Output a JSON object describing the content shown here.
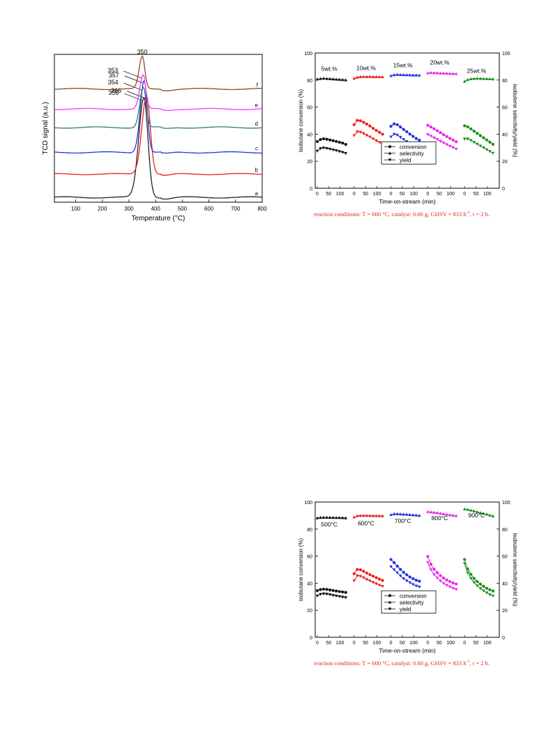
{
  "chart_data": [
    {
      "type": "line",
      "xlabel": "Temperature (°C)",
      "ylabel": "TCD signal (a.u.)",
      "xlim": [
        20,
        800
      ],
      "xticks": [
        100,
        200,
        300,
        400,
        500,
        600,
        700,
        800
      ],
      "y_tick_labels": false,
      "grid": false,
      "series": [
        {
          "name": "a",
          "color": "#222222",
          "baseline": 0.3,
          "peak_x": 356,
          "peak_height": 6.2,
          "width": 26,
          "peak_label": "356"
        },
        {
          "name": "b",
          "color": "#ee1c1c",
          "baseline": 1.75,
          "peak_x": 366,
          "peak_height": 4.9,
          "width": 24,
          "peak_label": "366"
        },
        {
          "name": "c",
          "color": "#2233dd",
          "baseline": 3.1,
          "peak_x": 357,
          "peak_height": 4.5,
          "width": 20,
          "peak_label": "357"
        },
        {
          "name": "d",
          "color": "#2a7f74",
          "baseline": 4.65,
          "peak_x": 354,
          "peak_height": 2.5,
          "width": 18,
          "peak_label": "354"
        },
        {
          "name": "e",
          "color": "#ff33ff",
          "baseline": 5.8,
          "peak_x": 353,
          "peak_height": 2.1,
          "width": 17,
          "peak_label": "353"
        },
        {
          "name": "f",
          "color": "#8b4a2a",
          "baseline": 7.05,
          "peak_x": 350,
          "peak_height": 2.0,
          "width": 16,
          "peak_label": "350"
        }
      ]
    },
    {
      "type": "scatter",
      "xlabel": "Time-on-stream (min)",
      "ylabel": "isobutane conversion (%)",
      "y2label": "isobutene selectivity/yield (%)",
      "ylim": [
        0,
        100
      ],
      "yticks": [
        0,
        20,
        40,
        60,
        80,
        100
      ],
      "segment_xticks": [
        "0",
        "50",
        "100"
      ],
      "legend": [
        "conversion",
        "selectivity",
        "yield"
      ],
      "legend_placement": "lower-center",
      "groups": [
        {
          "label": "5wt.%",
          "color": "#111111",
          "conversion": [
            34.5,
            36.0,
            36.6,
            36.2,
            35.7,
            35.2,
            34.6,
            34.0,
            33.4,
            32.4
          ],
          "selectivity": [
            80.6,
            81.0,
            81.2,
            81.0,
            80.9,
            80.7,
            80.5,
            80.4,
            80.2,
            80.0
          ],
          "yield": [
            27.5,
            29.4,
            29.9,
            29.5,
            29.0,
            28.4,
            27.9,
            27.2,
            26.6,
            25.8
          ]
        },
        {
          "label": "10wt.%",
          "color": "#ee1c1c",
          "conversion": [
            47.0,
            50.2,
            49.9,
            48.8,
            47.5,
            46.0,
            44.3,
            42.8,
            41.4,
            40.0
          ],
          "selectivity": [
            81.2,
            82.0,
            82.4,
            82.5,
            82.5,
            82.5,
            82.4,
            82.4,
            82.3,
            82.3
          ],
          "yield": [
            39.0,
            41.8,
            41.5,
            40.5,
            39.2,
            38.0,
            36.6,
            35.2,
            34.0,
            32.8
          ]
        },
        {
          "label": "15wt.%",
          "color": "#2233dd",
          "conversion": [
            45.8,
            47.6,
            47.0,
            45.3,
            43.5,
            41.8,
            40.0,
            38.4,
            36.8,
            35.5
          ],
          "selectivity": [
            83.2,
            83.8,
            84.0,
            83.9,
            83.8,
            83.8,
            83.7,
            83.6,
            83.6,
            83.5
          ],
          "yield": [
            38.0,
            40.0,
            39.4,
            37.8,
            36.2,
            34.6,
            33.0,
            31.7,
            30.4,
            29.3
          ]
        },
        {
          "label": "20wt.%",
          "color": "#ee22ee",
          "conversion": [
            46.6,
            45.3,
            44.0,
            42.6,
            41.1,
            39.6,
            38.2,
            36.9,
            35.6,
            34.4
          ],
          "selectivity": [
            85.2,
            85.4,
            85.3,
            85.2,
            85.0,
            85.0,
            84.9,
            84.8,
            84.7,
            84.6
          ],
          "yield": [
            39.8,
            38.6,
            37.3,
            36.1,
            34.8,
            33.6,
            32.3,
            31.2,
            30.1,
            29.0
          ]
        },
        {
          "label": "25wt.%",
          "color": "#1a8f1a",
          "conversion": [
            46.2,
            45.4,
            43.9,
            42.2,
            40.6,
            38.9,
            37.3,
            35.7,
            34.1,
            32.5
          ],
          "selectivity": [
            79.0,
            80.2,
            80.8,
            81.0,
            81.2,
            81.1,
            81.0,
            80.9,
            80.8,
            80.7
          ],
          "yield": [
            36.5,
            36.6,
            35.4,
            34.0,
            32.7,
            31.3,
            30.0,
            28.6,
            27.3,
            26.0
          ]
        }
      ],
      "caption": {
        "lead": "reaction conditions: T = 600 °C, catalyst: 0.60 g, GHSV = 833 h",
        "sup": "-1",
        "tail": ", t = 2 h."
      }
    },
    {
      "type": "scatter",
      "xlabel": "Time-on-stream (min)",
      "ylabel": "isobutane conversion (%)",
      "y2label": "isobutene selectivity/yield (%)",
      "ylim": [
        0,
        100
      ],
      "yticks": [
        0,
        20,
        40,
        60,
        80,
        100
      ],
      "segment_xticks": [
        "0",
        "50",
        "100"
      ],
      "legend": [
        "conversion",
        "selectivity",
        "yield"
      ],
      "legend_placement": "lower-center",
      "groups": [
        {
          "label": "500°C",
          "color": "#111111",
          "conversion": [
            34.5,
            35.3,
            35.6,
            35.4,
            35.0,
            34.6,
            34.2,
            33.8,
            33.5,
            33.2
          ],
          "selectivity": [
            88.2,
            88.5,
            88.6,
            88.6,
            88.5,
            88.5,
            88.4,
            88.4,
            88.3,
            88.2
          ],
          "yield": [
            30.6,
            31.8,
            32.2,
            32.0,
            31.6,
            31.0,
            30.6,
            30.2,
            29.8,
            29.4
          ]
        },
        {
          "label": "600°C",
          "color": "#ee1c1c",
          "conversion": [
            47.0,
            50.2,
            49.9,
            48.8,
            47.5,
            46.3,
            45.2,
            44.1,
            43.0,
            42.0
          ],
          "selectivity": [
            88.8,
            89.8,
            90.0,
            90.0,
            90.0,
            89.9,
            89.9,
            89.8,
            89.8,
            89.7
          ],
          "yield": [
            41.8,
            45.5,
            45.2,
            44.1,
            42.8,
            41.7,
            40.6,
            39.6,
            38.6,
            37.7
          ]
        },
        {
          "label": "700°C",
          "color": "#2233dd",
          "conversion": [
            57.5,
            55.2,
            52.6,
            50.2,
            48.0,
            46.2,
            44.6,
            43.3,
            42.2,
            41.5
          ],
          "selectivity": [
            90.6,
            91.2,
            91.2,
            91.1,
            90.9,
            90.8,
            90.6,
            90.4,
            90.2,
            90.0
          ],
          "yield": [
            52.2,
            50.0,
            47.8,
            45.5,
            43.4,
            41.8,
            40.4,
            39.1,
            38.0,
            37.3
          ]
        },
        {
          "label": "800°C",
          "color": "#ee22ee",
          "conversion": [
            59.8,
            54.0,
            50.4,
            47.8,
            45.6,
            43.8,
            42.4,
            41.2,
            40.2,
            39.4
          ],
          "selectivity": [
            92.8,
            92.6,
            92.3,
            92.0,
            91.6,
            91.2,
            90.8,
            90.4,
            90.1,
            89.8
          ],
          "yield": [
            55.4,
            50.0,
            46.4,
            43.9,
            41.7,
            39.9,
            38.5,
            37.3,
            36.2,
            35.4
          ]
        },
        {
          "label": "900°C",
          "color": "#1a8f1a",
          "conversion": [
            57.5,
            50.5,
            46.6,
            43.6,
            41.2,
            39.3,
            37.7,
            36.3,
            35.1,
            34.2
          ],
          "selectivity": [
            94.8,
            94.4,
            93.9,
            93.3,
            92.7,
            92.1,
            91.5,
            90.9,
            90.2,
            89.6
          ],
          "yield": [
            54.5,
            47.6,
            43.6,
            40.6,
            38.1,
            36.1,
            34.4,
            32.9,
            31.6,
            30.6
          ]
        }
      ],
      "caption": {
        "lead": "reaction conditions: T = 600 °C, catalyst: 0.60 g, GHSV = 833 h",
        "sup": "-1",
        "tail": ", t = 2 h."
      }
    }
  ]
}
